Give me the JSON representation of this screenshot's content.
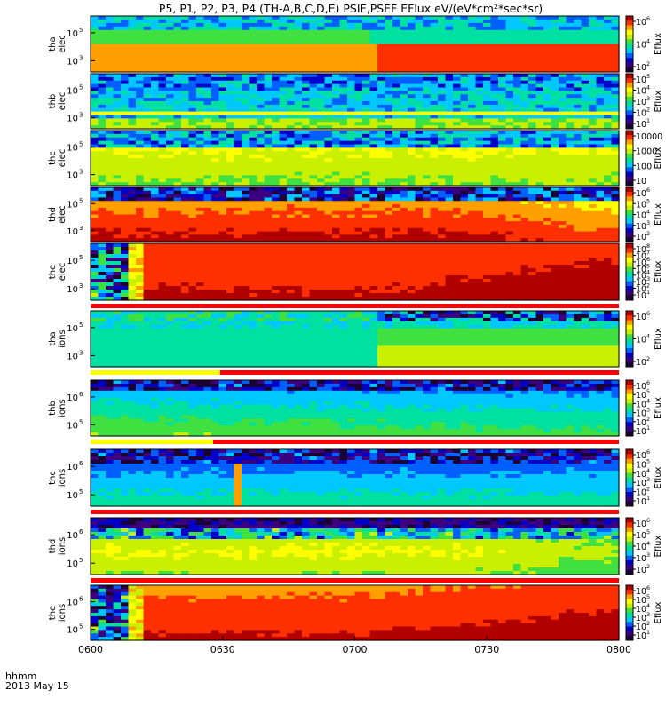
{
  "title": "P5, P1, P2, P3, P4 (TH-A,B,C,D,E) PSIF,PSEF EFlux eV/(eV*cm²*sec*sr)",
  "time_label": "hhmm",
  "date_label": "2013 May 15",
  "chart_data": {
    "type": "heatmap",
    "x_ticks": [
      "0600",
      "0630",
      "0700",
      "0730",
      "0800"
    ],
    "x_range": [
      "06:00",
      "08:00"
    ],
    "colorbar_label": "Eflux",
    "panels": [
      {
        "id": "tha-elec",
        "ylabel_top": "tha",
        "ylabel_bottom": "elec",
        "y_ticks": [
          {
            "base": "10",
            "exp": "5"
          },
          {
            "base": "10",
            "exp": "3"
          }
        ],
        "cb_ticks": [
          {
            "base": "10",
            "exp": "6"
          },
          {
            "base": "10",
            "exp": "4"
          },
          {
            "base": "10",
            "exp": "2"
          }
        ],
        "scale": [
          2,
          7
        ],
        "status_bar": null
      },
      {
        "id": "thb-elec",
        "ylabel_top": "thb",
        "ylabel_bottom": "elec",
        "y_ticks": [
          {
            "base": "10",
            "exp": "5"
          },
          {
            "base": "10",
            "exp": "3"
          }
        ],
        "cb_ticks": [
          {
            "base": "10",
            "exp": "5"
          },
          {
            "base": "10",
            "exp": "4"
          },
          {
            "base": "10",
            "exp": "3"
          },
          {
            "base": "10",
            "exp": "2"
          },
          {
            "base": "10",
            "exp": "1"
          }
        ],
        "scale": [
          1,
          5.5
        ],
        "status_bar": null
      },
      {
        "id": "thc-elec",
        "ylabel_top": "thc",
        "ylabel_bottom": "elec",
        "y_ticks": [
          {
            "base": "10",
            "exp": "5"
          },
          {
            "base": "10",
            "exp": "3"
          }
        ],
        "cb_ticks": [
          {
            "base": "10000",
            "exp": ""
          },
          {
            "base": "1000",
            "exp": ""
          },
          {
            "base": "100",
            "exp": ""
          },
          {
            "base": "10",
            "exp": ""
          }
        ],
        "scale": [
          1,
          4
        ],
        "status_bar": null
      },
      {
        "id": "thd-elec",
        "ylabel_top": "thd",
        "ylabel_bottom": "elec",
        "y_ticks": [
          {
            "base": "10",
            "exp": "5"
          },
          {
            "base": "10",
            "exp": "3"
          }
        ],
        "cb_ticks": [
          {
            "base": "10",
            "exp": "6"
          },
          {
            "base": "10",
            "exp": "5"
          },
          {
            "base": "10",
            "exp": "4"
          },
          {
            "base": "10",
            "exp": "3"
          },
          {
            "base": "10",
            "exp": "2"
          }
        ],
        "scale": [
          1.5,
          6.5
        ],
        "status_bar": null
      },
      {
        "id": "the-elec",
        "ylabel_top": "the",
        "ylabel_bottom": "elec",
        "y_ticks": [
          {
            "base": "10",
            "exp": "5"
          },
          {
            "base": "10",
            "exp": "3"
          }
        ],
        "cb_ticks": [
          {
            "base": "10",
            "exp": "8"
          },
          {
            "base": "10",
            "exp": "7"
          },
          {
            "base": "10",
            "exp": "6"
          },
          {
            "base": "10",
            "exp": "5"
          },
          {
            "base": "10",
            "exp": "4"
          },
          {
            "base": "10",
            "exp": "3"
          },
          {
            "base": "10",
            "exp": "2"
          },
          {
            "base": "10",
            "exp": "1"
          }
        ],
        "scale": [
          1,
          8
        ],
        "status_bar": [
          {
            "start": 0,
            "end": 1,
            "color": "#ff0000"
          }
        ]
      },
      {
        "id": "tha-ions",
        "ylabel_top": "tha",
        "ylabel_bottom": "ions",
        "y_ticks": [
          {
            "base": "10",
            "exp": "5"
          },
          {
            "base": "10",
            "exp": "3"
          }
        ],
        "cb_ticks": [
          {
            "base": "10",
            "exp": "6"
          },
          {
            "base": "10",
            "exp": "4"
          },
          {
            "base": "10",
            "exp": "2"
          }
        ],
        "scale": [
          1,
          7
        ],
        "status_bar": [
          {
            "start": 0,
            "end": 0.245,
            "color": "#ffff00"
          },
          {
            "start": 0.245,
            "end": 1,
            "color": "#ff0000"
          }
        ]
      },
      {
        "id": "thb-ions",
        "ylabel_top": "thb",
        "ylabel_bottom": "ions",
        "y_ticks": [
          {
            "base": "10",
            "exp": "6"
          },
          {
            "base": "10",
            "exp": "5"
          }
        ],
        "cb_ticks": [
          {
            "base": "10",
            "exp": "6"
          },
          {
            "base": "10",
            "exp": "5"
          },
          {
            "base": "10",
            "exp": "4"
          },
          {
            "base": "10",
            "exp": "3"
          },
          {
            "base": "10",
            "exp": "2"
          },
          {
            "base": "10",
            "exp": "1"
          }
        ],
        "scale": [
          1,
          6
        ],
        "status_bar": [
          {
            "start": 0,
            "end": 0.232,
            "color": "#ffff00"
          },
          {
            "start": 0.232,
            "end": 1,
            "color": "#ff0000"
          }
        ]
      },
      {
        "id": "thc-ions",
        "ylabel_top": "thc",
        "ylabel_bottom": "ions",
        "y_ticks": [
          {
            "base": "10",
            "exp": "6"
          },
          {
            "base": "10",
            "exp": "5"
          }
        ],
        "cb_ticks": [
          {
            "base": "10",
            "exp": "6"
          },
          {
            "base": "10",
            "exp": "5"
          },
          {
            "base": "10",
            "exp": "4"
          },
          {
            "base": "10",
            "exp": "3"
          },
          {
            "base": "10",
            "exp": "2"
          },
          {
            "base": "10",
            "exp": "1"
          }
        ],
        "scale": [
          1,
          6
        ],
        "status_bar": [
          {
            "start": 0,
            "end": 1,
            "color": "#ff0000"
          }
        ]
      },
      {
        "id": "thd-ions",
        "ylabel_top": "thd",
        "ylabel_bottom": "ions",
        "y_ticks": [
          {
            "base": "10",
            "exp": "6"
          },
          {
            "base": "10",
            "exp": "5"
          }
        ],
        "cb_ticks": [
          {
            "base": "10",
            "exp": "6"
          },
          {
            "base": "10",
            "exp": "5"
          },
          {
            "base": "10",
            "exp": "4"
          },
          {
            "base": "10",
            "exp": "3"
          },
          {
            "base": "10",
            "exp": "2"
          }
        ],
        "scale": [
          2,
          6
        ],
        "status_bar": [
          {
            "start": 0,
            "end": 1,
            "color": "#ff0000"
          }
        ]
      },
      {
        "id": "the-ions",
        "ylabel_top": "the",
        "ylabel_bottom": "ions",
        "y_ticks": [
          {
            "base": "10",
            "exp": "6"
          },
          {
            "base": "10",
            "exp": "5"
          }
        ],
        "cb_ticks": [
          {
            "base": "10",
            "exp": "6"
          },
          {
            "base": "10",
            "exp": "5"
          },
          {
            "base": "10",
            "exp": "4"
          },
          {
            "base": "10",
            "exp": "3"
          },
          {
            "base": "10",
            "exp": "2"
          },
          {
            "base": "10",
            "exp": "1"
          }
        ],
        "scale": [
          1,
          6
        ],
        "status_bar": null
      }
    ],
    "colormap": [
      "#1a0033",
      "#3b0080",
      "#0000c8",
      "#0060ff",
      "#00c8ff",
      "#00e0a0",
      "#40e040",
      "#c8f000",
      "#ffff00",
      "#ffa000",
      "#ff3000",
      "#b00000"
    ]
  }
}
